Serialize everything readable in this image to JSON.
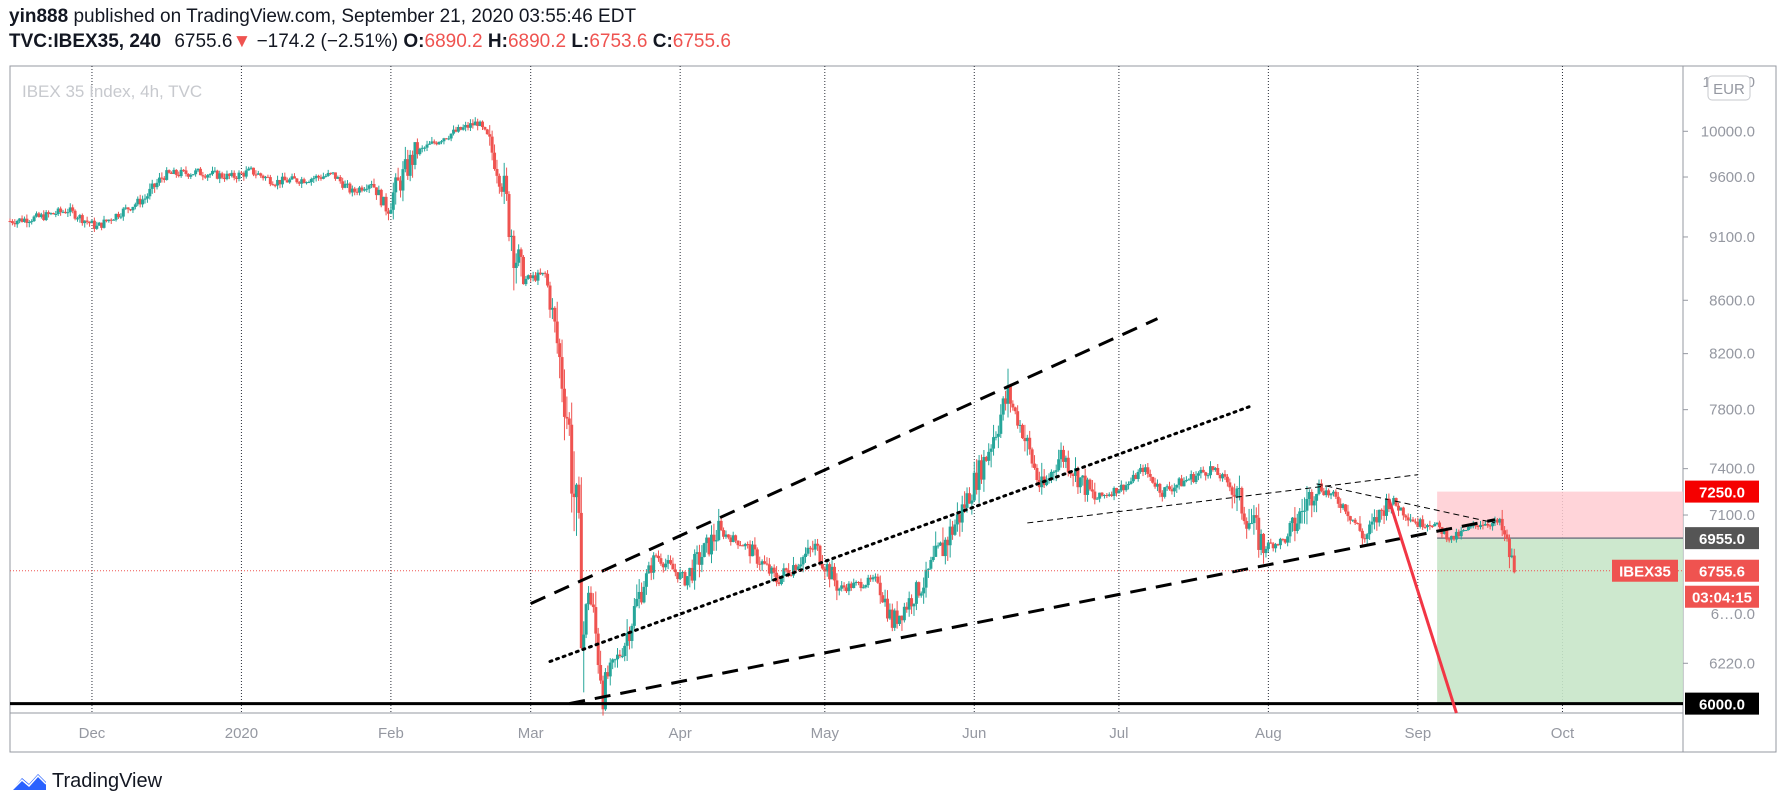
{
  "header": {
    "publisher": "yin888",
    "published_on": "published on TradingView.com, September 21, 2020 03:55:46 EDT",
    "symbol": "TVC:IBEX35, 240",
    "last": "6755.6",
    "change_arrow": "▼",
    "change": "−174.2 (−2.51%)",
    "o_label": "O:",
    "o_value": "6890.2",
    "h_label": "H:",
    "h_value": "6890.2",
    "l_label": "L:",
    "l_value": "6753.6",
    "c_label": "C:",
    "c_value": "6755.6"
  },
  "footer": {
    "brand": "TradingView",
    "logo_icon": "tradingview-logo-icon"
  },
  "colors": {
    "up": "#26a69a",
    "down": "#ef5350",
    "grid": "#e6e6e6",
    "text_gray": "#9598a1",
    "red_line": "#f23645",
    "profit_zone": "#c8e6c9",
    "loss_zone": "#ffcdd2"
  },
  "chart_data": {
    "type": "candlestick",
    "title": "IBEX 35 Index, 4h, TVC",
    "currency": "EUR",
    "y_axis": {
      "scale": "logarithmic",
      "range": [
        5950,
        10600
      ],
      "tick_labels": [
        "10000.0",
        "9600.0",
        "9100.0",
        "8600.0",
        "8200.0",
        "7800.0",
        "7400.0",
        "7100.0",
        "6220.0"
      ],
      "partial_tick_labels": [
        "1…00.0",
        "6…0.0"
      ]
    },
    "x_axis": {
      "range": [
        "2019-11-14",
        "2020-10-26"
      ],
      "ticks": [
        {
          "date": "2019-12-01",
          "label": "Dec"
        },
        {
          "date": "2020-01-01",
          "label": "2020"
        },
        {
          "date": "2020-02-01",
          "label": "Feb"
        },
        {
          "date": "2020-03-01",
          "label": "Mar"
        },
        {
          "date": "2020-04-01",
          "label": "Apr"
        },
        {
          "date": "2020-05-01",
          "label": "May"
        },
        {
          "date": "2020-06-01",
          "label": "Jun"
        },
        {
          "date": "2020-07-01",
          "label": "Jul"
        },
        {
          "date": "2020-08-01",
          "label": "Aug"
        },
        {
          "date": "2020-09-01",
          "label": "Sep"
        },
        {
          "date": "2020-10-01",
          "label": "Oct"
        }
      ]
    },
    "price_path": [
      [
        "2019-11-14",
        9230
      ],
      [
        "2019-11-20",
        9260
      ],
      [
        "2019-11-26",
        9320
      ],
      [
        "2019-12-02",
        9180
      ],
      [
        "2019-12-06",
        9280
      ],
      [
        "2019-12-12",
        9420
      ],
      [
        "2019-12-16",
        9620
      ],
      [
        "2019-12-23",
        9640
      ],
      [
        "2019-12-30",
        9600
      ],
      [
        "2020-01-03",
        9650
      ],
      [
        "2020-01-08",
        9560
      ],
      [
        "2020-01-14",
        9580
      ],
      [
        "2020-01-20",
        9620
      ],
      [
        "2020-01-24",
        9470
      ],
      [
        "2020-01-28",
        9560
      ],
      [
        "2020-01-31",
        9340
      ],
      [
        "2020-02-06",
        9800
      ],
      [
        "2020-02-12",
        9950
      ],
      [
        "2020-02-19",
        10080
      ],
      [
        "2020-02-21",
        9950
      ],
      [
        "2020-02-24",
        9550
      ],
      [
        "2020-02-28",
        8750
      ],
      [
        "2020-03-04",
        8800
      ],
      [
        "2020-03-06",
        8400
      ],
      [
        "2020-03-09",
        7650
      ],
      [
        "2020-03-12",
        6400
      ],
      [
        "2020-03-13",
        6650
      ],
      [
        "2020-03-16",
        6100
      ],
      [
        "2020-03-20",
        6300
      ],
      [
        "2020-03-24",
        6650
      ],
      [
        "2020-03-27",
        6850
      ],
      [
        "2020-04-02",
        6700
      ],
      [
        "2020-04-09",
        7000
      ],
      [
        "2020-04-15",
        6900
      ],
      [
        "2020-04-21",
        6700
      ],
      [
        "2020-04-29",
        6900
      ],
      [
        "2020-05-04",
        6650
      ],
      [
        "2020-05-12",
        6700
      ],
      [
        "2020-05-15",
        6450
      ],
      [
        "2020-05-22",
        6700
      ],
      [
        "2020-05-29",
        7100
      ],
      [
        "2020-06-03",
        7450
      ],
      [
        "2020-06-08",
        7900
      ],
      [
        "2020-06-11",
        7650
      ],
      [
        "2020-06-15",
        7250
      ],
      [
        "2020-06-19",
        7500
      ],
      [
        "2020-06-26",
        7200
      ],
      [
        "2020-07-03",
        7300
      ],
      [
        "2020-07-06",
        7400
      ],
      [
        "2020-07-10",
        7250
      ],
      [
        "2020-07-20",
        7400
      ],
      [
        "2020-07-24",
        7300
      ],
      [
        "2020-07-31",
        6900
      ],
      [
        "2020-08-05",
        6950
      ],
      [
        "2020-08-11",
        7300
      ],
      [
        "2020-08-17",
        7150
      ],
      [
        "2020-08-21",
        6950
      ],
      [
        "2020-08-26",
        7200
      ],
      [
        "2020-09-01",
        7050
      ],
      [
        "2020-09-04",
        7050
      ],
      [
        "2020-09-08",
        6950
      ],
      [
        "2020-09-14",
        7050
      ],
      [
        "2020-09-18",
        7050
      ],
      [
        "2020-09-21",
        6756
      ]
    ],
    "drawings": {
      "horizontal_support": {
        "price": 6000,
        "label": "6000.0"
      },
      "channel_upper": [
        [
          "2020-03-01",
          6560
        ],
        [
          "2020-07-09",
          8460
        ]
      ],
      "channel_lower": [
        [
          "2020-03-09",
          6000
        ],
        [
          "2020-09-17",
          7070
        ]
      ],
      "dotted_trendline": [
        [
          "2020-03-05",
          6230
        ],
        [
          "2020-07-28",
          7820
        ]
      ],
      "thin_dashed_upper": [
        [
          "2020-06-12",
          7050
        ],
        [
          "2020-09-01",
          7360
        ]
      ],
      "wedge_upper": [
        [
          "2020-08-11",
          7300
        ],
        [
          "2020-09-17",
          7050
        ]
      ],
      "red_projection": [
        [
          "2020-08-26",
          7200
        ],
        [
          "2020-09-09",
          5950
        ]
      ]
    },
    "position": {
      "entry": 6955.0,
      "stop": 7250.0,
      "target": 6000.0,
      "start": "2020-09-05",
      "end": "2020-10-26"
    },
    "current_price": {
      "symbol": "IBEX35",
      "price": "6755.6",
      "countdown": "03:04:15"
    },
    "price_labels": {
      "stop": "7250.0",
      "entry": "6955.0"
    }
  }
}
